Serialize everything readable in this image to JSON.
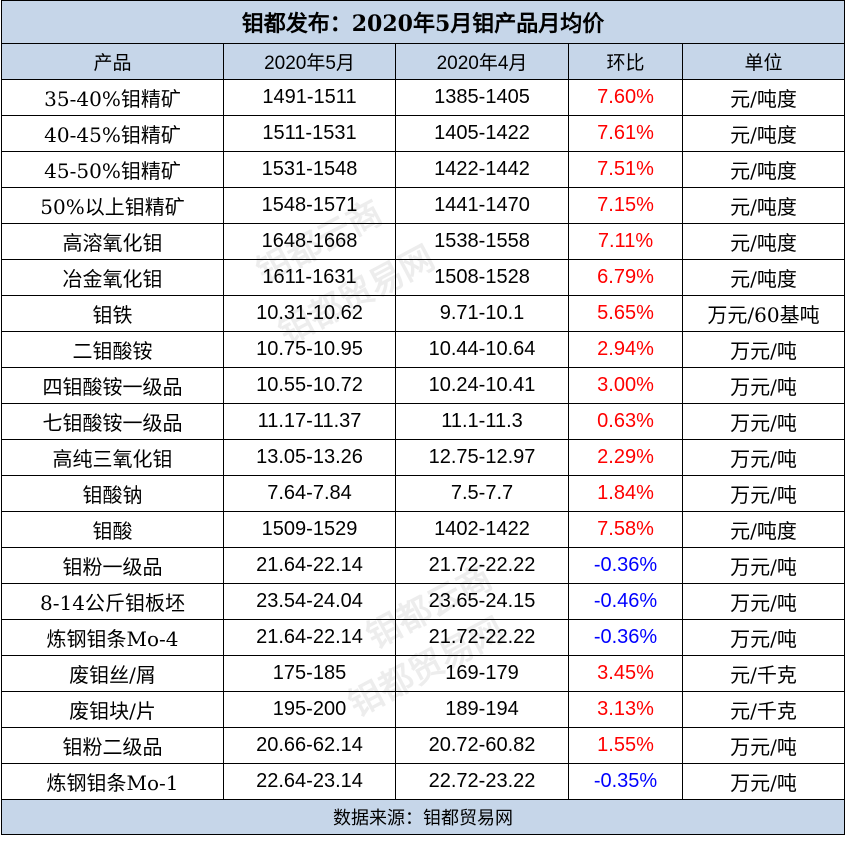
{
  "title": "钼都发布：2020年5月钼产品月均价",
  "headers": [
    "产品",
    "2020年5月",
    "2020年4月",
    "环比",
    "单位"
  ],
  "rows": [
    {
      "name": "35-40%钼精矿",
      "may": "1491-1511",
      "apr": "1385-1405",
      "change": "7.60%",
      "unit": "元/吨度"
    },
    {
      "name": "40-45%钼精矿",
      "may": "1511-1531",
      "apr": "1405-1422",
      "change": "7.61%",
      "unit": "元/吨度"
    },
    {
      "name": "45-50%钼精矿",
      "may": "1531-1548",
      "apr": "1422-1442",
      "change": "7.51%",
      "unit": "元/吨度"
    },
    {
      "name": "50%以上钼精矿",
      "may": "1548-1571",
      "apr": "1441-1470",
      "change": "7.15%",
      "unit": "元/吨度"
    },
    {
      "name": "高溶氧化钼",
      "may": "1648-1668",
      "apr": "1538-1558",
      "change": "7.11%",
      "unit": "元/吨度"
    },
    {
      "name": "冶金氧化钼",
      "may": "1611-1631",
      "apr": "1508-1528",
      "change": "6.79%",
      "unit": "元/吨度"
    },
    {
      "name": "钼铁",
      "may": "10.31-10.62",
      "apr": "9.71-10.1",
      "change": "5.65%",
      "unit": "万元/60基吨"
    },
    {
      "name": "二钼酸铵",
      "may": "10.75-10.95",
      "apr": "10.44-10.64",
      "change": "2.94%",
      "unit": "万元/吨"
    },
    {
      "name": "四钼酸铵一级品",
      "may": "10.55-10.72",
      "apr": "10.24-10.41",
      "change": "3.00%",
      "unit": "万元/吨"
    },
    {
      "name": "七钼酸铵一级品",
      "may": "11.17-11.37",
      "apr": "11.1-11.3",
      "change": "0.63%",
      "unit": "万元/吨"
    },
    {
      "name": "高纯三氧化钼",
      "may": "13.05-13.26",
      "apr": "12.75-12.97",
      "change": "2.29%",
      "unit": "万元/吨"
    },
    {
      "name": "钼酸钠",
      "may": "7.64-7.84",
      "apr": "7.5-7.7",
      "change": "1.84%",
      "unit": "万元/吨"
    },
    {
      "name": "钼酸",
      "may": "1509-1529",
      "apr": "1402-1422",
      "change": "7.58%",
      "unit": "元/吨度"
    },
    {
      "name": "钼粉一级品",
      "may": "21.64-22.14",
      "apr": "21.72-22.22",
      "change": "-0.36%",
      "unit": "万元/吨"
    },
    {
      "name": "8-14公斤钼板坯",
      "may": "23.54-24.04",
      "apr": "23.65-24.15",
      "change": "-0.46%",
      "unit": "万元/吨"
    },
    {
      "name": "炼钢钼条Mo-4",
      "may": "21.64-22.14",
      "apr": "21.72-22.22",
      "change": "-0.36%",
      "unit": "万元/吨"
    },
    {
      "name": "废钼丝/屑",
      "may": "175-185",
      "apr": "169-179",
      "change": "3.45%",
      "unit": "元/千克"
    },
    {
      "name": "废钼块/片",
      "may": "195-200",
      "apr": "189-194",
      "change": "3.13%",
      "unit": "元/千克"
    },
    {
      "name": "钼粉二级品",
      "may": "20.66-62.14",
      "apr": "20.72-60.82",
      "change": "1.55%",
      "unit": "万元/吨"
    },
    {
      "name": "炼钢钼条Mo-1",
      "may": "22.64-23.14",
      "apr": "22.72-23.22",
      "change": "-0.35%",
      "unit": "万元/吨"
    }
  ],
  "footer": "数据来源：钼都贸易网",
  "watermarks": [
    "钼都云商",
    "钼都贸易网",
    "钼都云商",
    "钼都贸易网"
  ],
  "colors": {
    "header_bg": "#c6d6e9",
    "positive": "#ff0000",
    "negative": "#0000ff"
  }
}
